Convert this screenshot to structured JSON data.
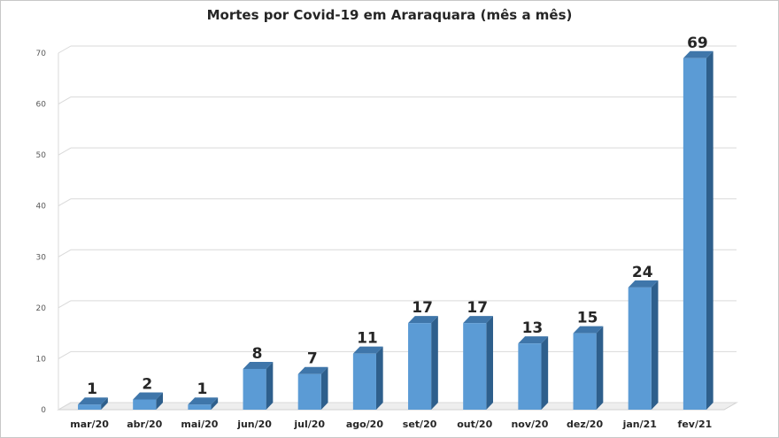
{
  "chart_data": {
    "type": "bar",
    "title": "Mortes por Covid-19 em Araraquara (mês a mês)",
    "categories": [
      "mar/20",
      "abr/20",
      "mai/20",
      "jun/20",
      "jul/20",
      "ago/20",
      "set/20",
      "out/20",
      "nov/20",
      "dez/20",
      "jan/21",
      "fev/21"
    ],
    "values": [
      1,
      2,
      1,
      8,
      7,
      11,
      17,
      17,
      13,
      15,
      24,
      69
    ],
    "y_ticks": [
      "0",
      "10",
      "20",
      "30",
      "40",
      "50",
      "60",
      "70"
    ],
    "ylim": [
      0,
      70
    ],
    "grid": true,
    "legend": "none",
    "bar_color": "#5b9bd5",
    "bar_side_color": "#2e5f8c",
    "bar_top_color": "#3f76aa"
  }
}
